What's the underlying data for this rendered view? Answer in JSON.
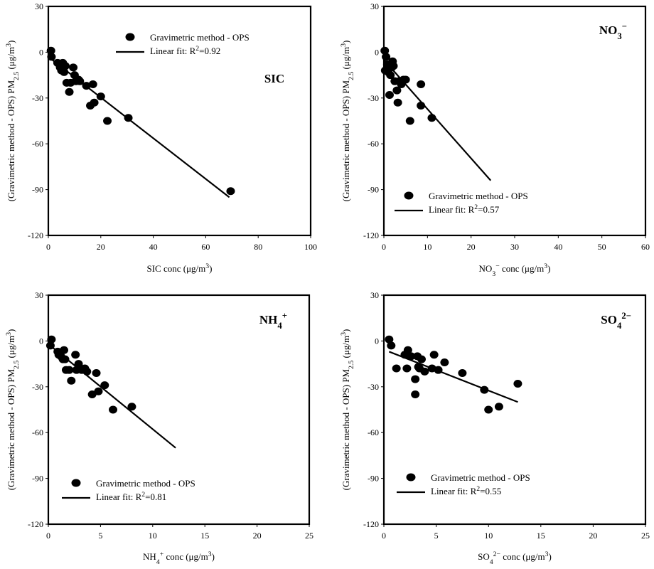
{
  "chart_data": [
    {
      "type": "scatter",
      "annotation": "SIC",
      "xlabel": "SIC conc (μg/m³)",
      "ylabel": "(Gravimetric method - OPS) PM₂.₅ (μg/m³)",
      "xlim": [
        0,
        100
      ],
      "ylim": [
        -120,
        30
      ],
      "xticks": [
        0,
        20,
        40,
        60,
        80,
        100
      ],
      "yticks": [
        30,
        0,
        -30,
        -60,
        -90,
        -120
      ],
      "legend": {
        "position": "top-center",
        "scatter_label": "Gravimetric method - OPS",
        "fit_label": "Linear fit: R²=0.92"
      },
      "fit": {
        "x": [
          0,
          69
        ],
        "y": [
          -3,
          -95
        ]
      },
      "points": [
        [
          1,
          1
        ],
        [
          1.2,
          -3
        ],
        [
          3.5,
          -7
        ],
        [
          4.5,
          -10
        ],
        [
          5,
          -12
        ],
        [
          5.5,
          -7
        ],
        [
          6,
          -13
        ],
        [
          6.5,
          -9
        ],
        [
          7,
          -20
        ],
        [
          8,
          -26
        ],
        [
          8.5,
          -20
        ],
        [
          9.5,
          -10
        ],
        [
          10,
          -15
        ],
        [
          10.5,
          -19
        ],
        [
          11.5,
          -18
        ],
        [
          12,
          -19
        ],
        [
          14.5,
          -22
        ],
        [
          16,
          -35
        ],
        [
          17,
          -21
        ],
        [
          17.5,
          -33
        ],
        [
          20,
          -29
        ],
        [
          22.5,
          -45
        ],
        [
          30.5,
          -43
        ],
        [
          69.5,
          -91
        ]
      ]
    },
    {
      "type": "scatter",
      "annotation": "NO₃⁻",
      "xlabel": "NO₃⁻ conc (μg/m³)",
      "ylabel": "(Gravimetric method - OPS) PM₂.₅ (μg/m³)",
      "xlim": [
        0,
        60
      ],
      "ylim": [
        -120,
        30
      ],
      "xticks": [
        0,
        10,
        20,
        30,
        40,
        50,
        60
      ],
      "yticks": [
        30,
        0,
        -30,
        -60,
        -90,
        -120
      ],
      "legend": {
        "position": "bottom-center",
        "scatter_label": "Gravimetric method - OPS",
        "fit_label": "Linear fit: R²=0.57"
      },
      "fit": {
        "x": [
          0,
          24.5
        ],
        "y": [
          -5,
          -84
        ]
      },
      "points": [
        [
          0.2,
          1
        ],
        [
          0.3,
          -12
        ],
        [
          0.5,
          -3
        ],
        [
          0.8,
          -8
        ],
        [
          1,
          -13
        ],
        [
          1.3,
          -28
        ],
        [
          1.5,
          -15
        ],
        [
          1.8,
          -10
        ],
        [
          2,
          -6
        ],
        [
          2.2,
          -9
        ],
        [
          2.5,
          -19
        ],
        [
          3,
          -25
        ],
        [
          3.2,
          -33
        ],
        [
          3.5,
          -19
        ],
        [
          4,
          -21
        ],
        [
          4.5,
          -18
        ],
        [
          5,
          -18
        ],
        [
          6,
          -45
        ],
        [
          8.5,
          -21
        ],
        [
          8.5,
          -35
        ],
        [
          11,
          -43
        ]
      ]
    },
    {
      "type": "scatter",
      "annotation": "NH₄⁺",
      "xlabel": "NH₄⁺ conc (μg/m³)",
      "ylabel": "(Gravimetric method - OPS) PM₂.₅ (μg/m³)",
      "xlim": [
        0,
        25
      ],
      "ylim": [
        -120,
        30
      ],
      "xticks": [
        0,
        5,
        10,
        15,
        20,
        25
      ],
      "yticks": [
        30,
        0,
        -30,
        -60,
        -90,
        -120
      ],
      "legend": {
        "position": "bottom-left",
        "scatter_label": "Gravimetric method - OPS",
        "fit_label": "Linear fit: R²=0.81"
      },
      "fit": {
        "x": [
          0,
          12.2
        ],
        "y": [
          -2,
          -70
        ]
      },
      "points": [
        [
          0.2,
          -3
        ],
        [
          0.3,
          1
        ],
        [
          0.9,
          -7
        ],
        [
          1,
          -9
        ],
        [
          1.2,
          -10
        ],
        [
          1.4,
          -12
        ],
        [
          1.5,
          -6
        ],
        [
          1.6,
          -12
        ],
        [
          1.7,
          -19
        ],
        [
          2,
          -19
        ],
        [
          2.2,
          -26
        ],
        [
          2.6,
          -9
        ],
        [
          2.7,
          -19
        ],
        [
          2.9,
          -15
        ],
        [
          3,
          -18
        ],
        [
          3.2,
          -19
        ],
        [
          3.5,
          -18
        ],
        [
          3.7,
          -20
        ],
        [
          4.2,
          -35
        ],
        [
          4.6,
          -21
        ],
        [
          4.8,
          -33
        ],
        [
          5.4,
          -29
        ],
        [
          6.2,
          -45
        ],
        [
          8,
          -43
        ]
      ]
    },
    {
      "type": "scatter",
      "annotation": "SO₄²⁻",
      "xlabel": "SO₄²⁻ conc (μg/m³)",
      "ylabel": "(Gravimetric method - OPS) PM₂.₅ (μg/m³)",
      "xlim": [
        0,
        25
      ],
      "ylim": [
        -120,
        30
      ],
      "xticks": [
        0,
        5,
        10,
        15,
        20,
        25
      ],
      "yticks": [
        30,
        0,
        -30,
        -60,
        -90,
        -120
      ],
      "legend": {
        "position": "bottom-left",
        "scatter_label": "Gravimetric method - OPS",
        "fit_label": "Linear fit: R²=0.55"
      },
      "fit": {
        "x": [
          0.5,
          12.8
        ],
        "y": [
          -7,
          -40
        ]
      },
      "points": [
        [
          0.5,
          1
        ],
        [
          0.7,
          -3
        ],
        [
          1.2,
          -18
        ],
        [
          2,
          -9
        ],
        [
          2.2,
          -18
        ],
        [
          2.3,
          -6
        ],
        [
          2.6,
          -10
        ],
        [
          3,
          -25
        ],
        [
          3,
          -35
        ],
        [
          3.2,
          -10
        ],
        [
          3.3,
          -17
        ],
        [
          3.4,
          -18
        ],
        [
          3.6,
          -12
        ],
        [
          3.9,
          -20
        ],
        [
          4.6,
          -18
        ],
        [
          4.8,
          -9
        ],
        [
          5.2,
          -19
        ],
        [
          5.8,
          -14
        ],
        [
          7.5,
          -21
        ],
        [
          9.6,
          -32
        ],
        [
          10,
          -45
        ],
        [
          11,
          -43
        ],
        [
          12.8,
          -28
        ]
      ]
    }
  ]
}
